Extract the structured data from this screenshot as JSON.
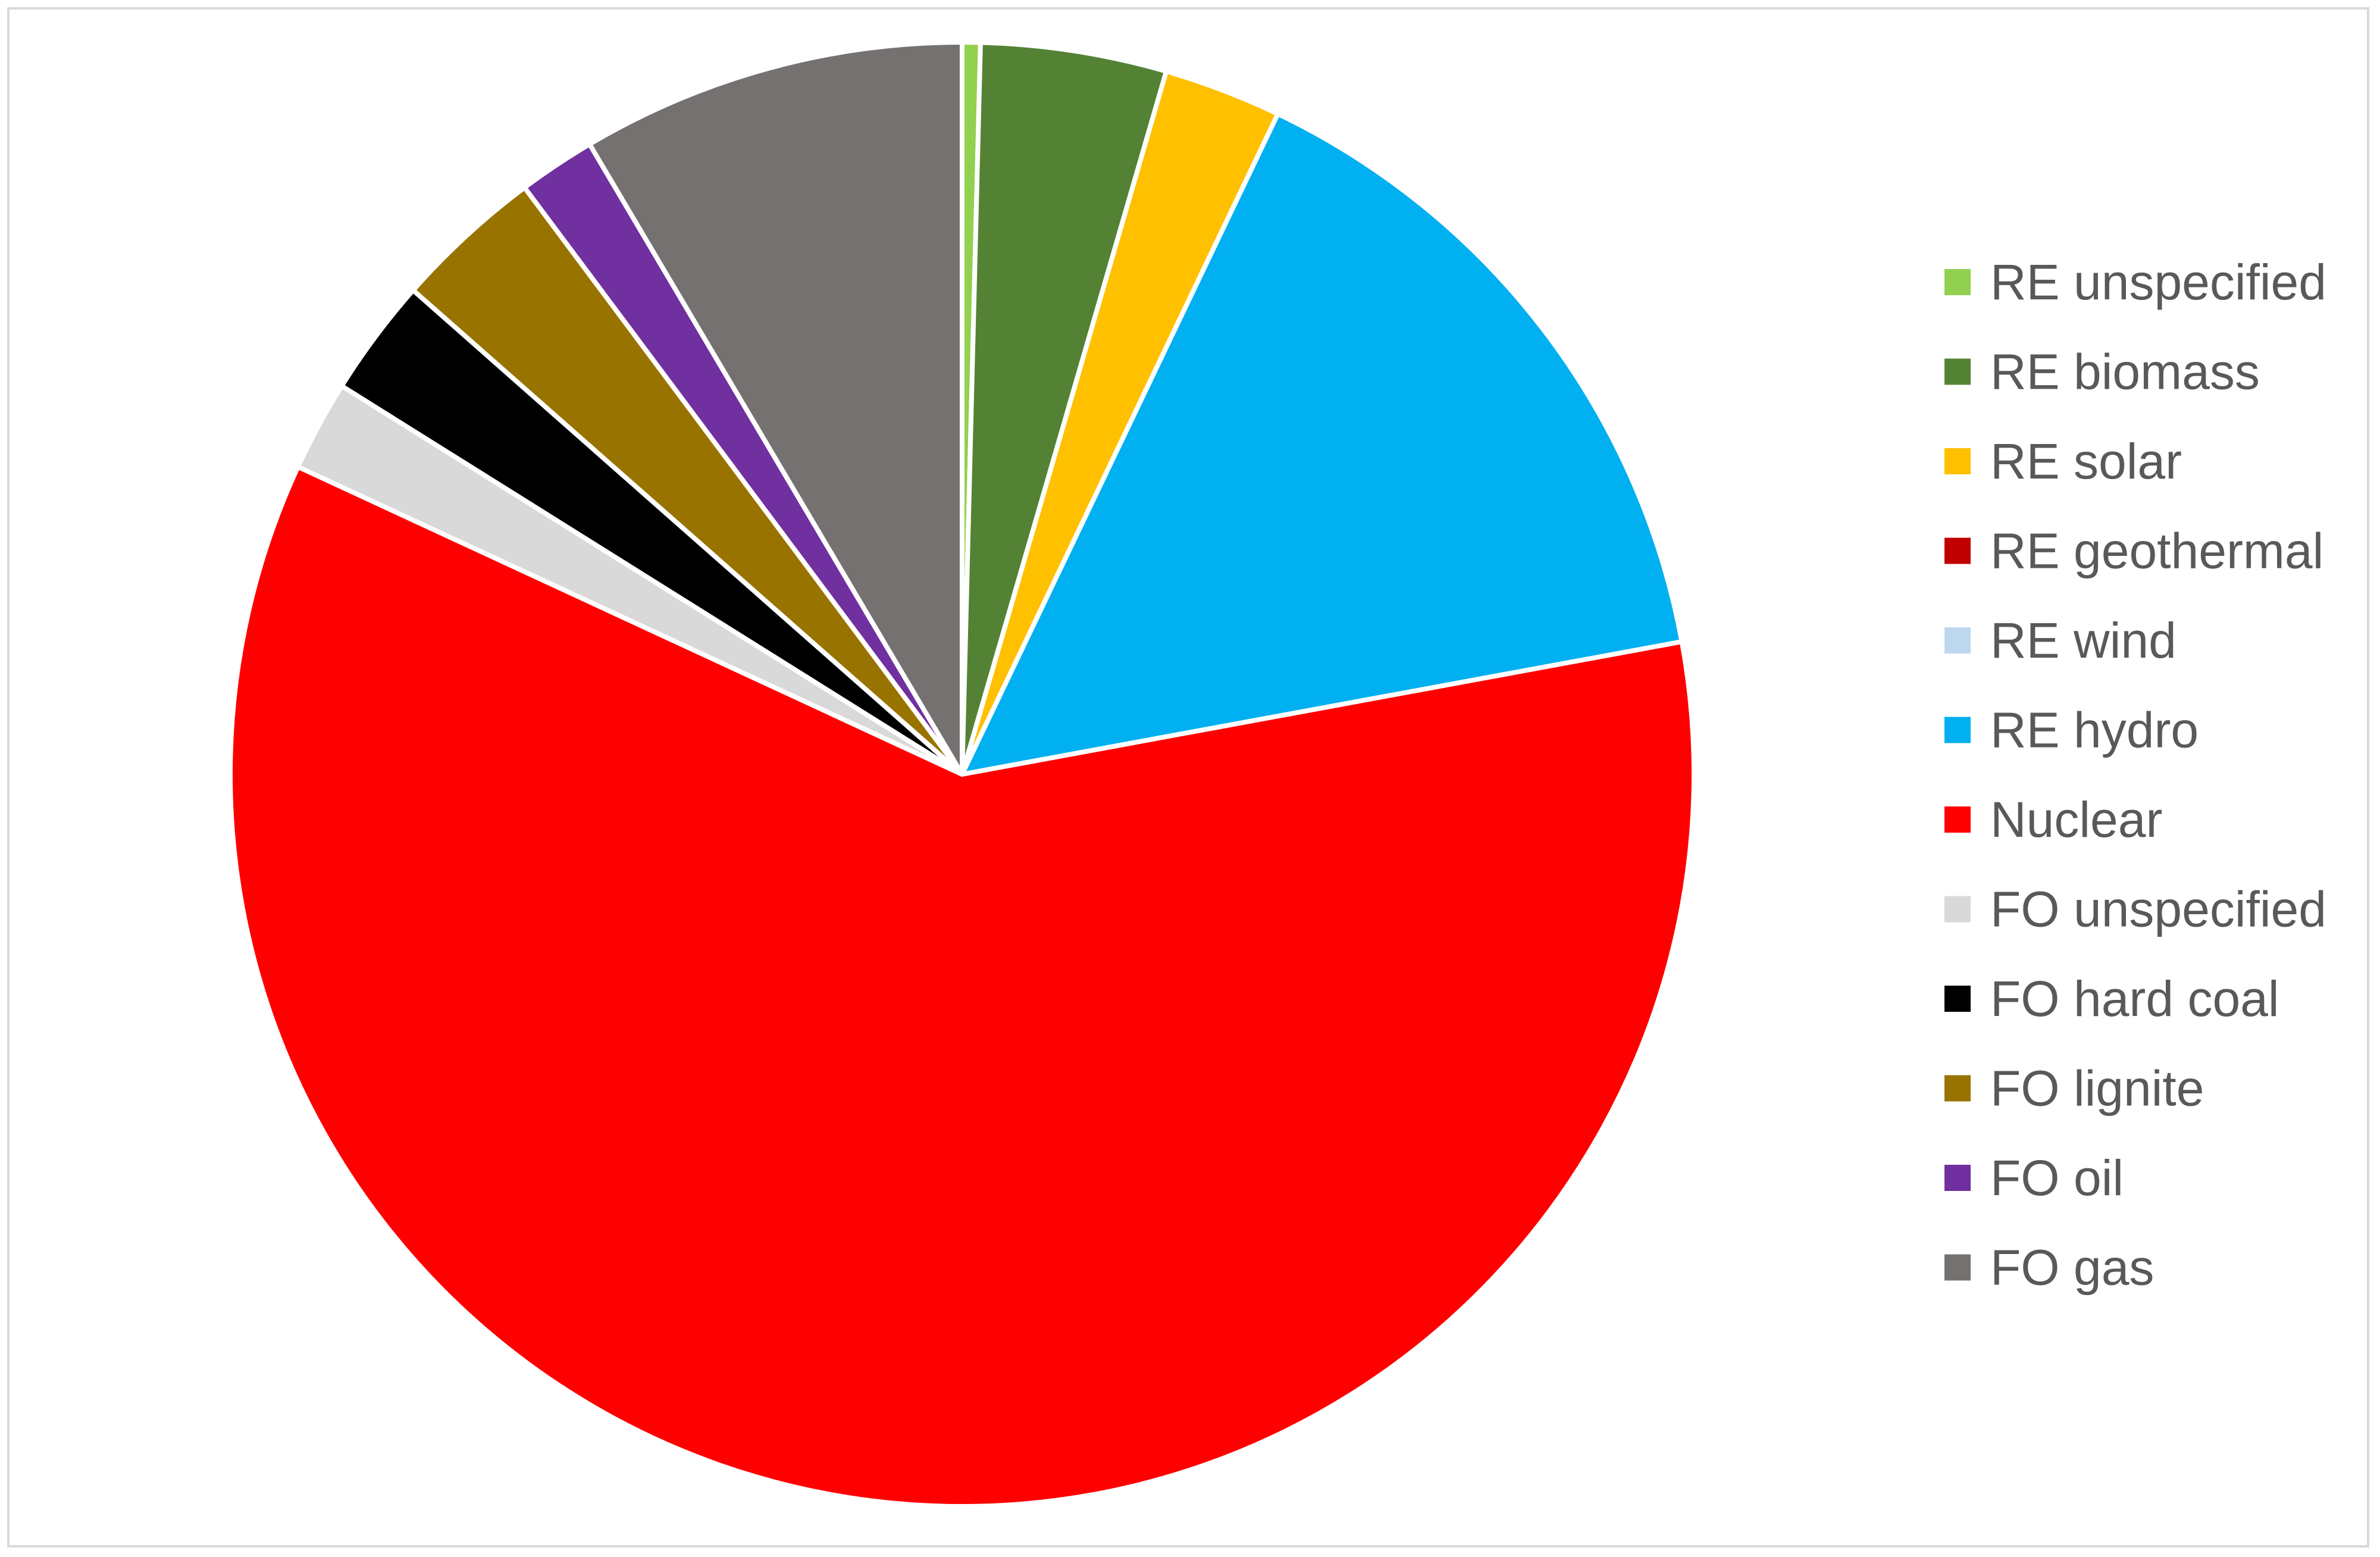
{
  "chart_data": {
    "type": "pie",
    "title": "",
    "start_angle_deg": 0,
    "direction": "clockwise",
    "legend_position": "right",
    "unit": "percent (estimated)",
    "slices": [
      {
        "label": "RE unspecified",
        "value": 0.4,
        "color": "#92D050"
      },
      {
        "label": "RE biomass",
        "value": 4.1,
        "color": "#548235"
      },
      {
        "label": "RE solar",
        "value": 2.6,
        "color": "#FFC000"
      },
      {
        "label": "RE geothermal",
        "value": 0,
        "color": "#C00000"
      },
      {
        "label": "RE wind",
        "value": 0,
        "color": "#BDD7EE"
      },
      {
        "label": "RE hydro",
        "value": 15.0,
        "color": "#00B0F0"
      },
      {
        "label": "Nuclear",
        "value": 59.8,
        "color": "#FF0000"
      },
      {
        "label": "FO unspecified",
        "value": 2.0,
        "color": "#D9D9D9"
      },
      {
        "label": "FO hard coal",
        "value": 2.6,
        "color": "#000000"
      },
      {
        "label": "FO lignite",
        "value": 3.3,
        "color": "#997300"
      },
      {
        "label": "FO oil",
        "value": 1.7,
        "color": "#7030A0"
      },
      {
        "label": "FO gas",
        "value": 8.5,
        "color": "#767171"
      }
    ]
  }
}
